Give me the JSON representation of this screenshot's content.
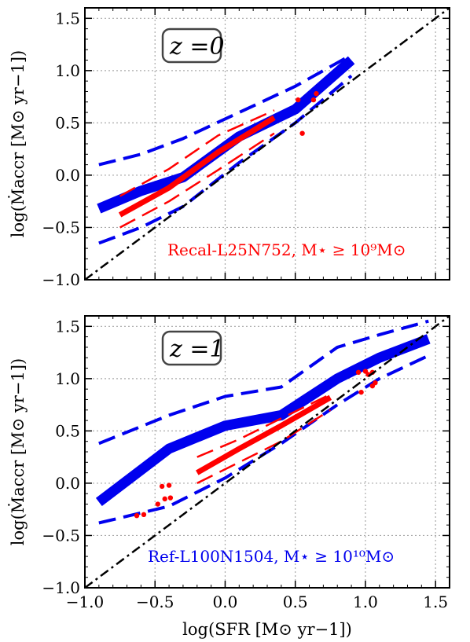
{
  "chart_data": [
    {
      "type": "line",
      "panel": "top",
      "label": "z =0",
      "annotation": "Recal-L25N752, M⋆ ≥ 10⁹M⊙",
      "annotation_color": "#ff0000",
      "xlim": [
        -1.0,
        1.6
      ],
      "ylim": [
        -1.0,
        1.6
      ],
      "xticks": [
        "−1.0",
        "−0.5",
        "0.0",
        "0.5",
        "1.0",
        "1.5"
      ],
      "yticks": [
        "−1.0",
        "−0.5",
        "0.0",
        "0.5",
        "1.0",
        "1.5"
      ],
      "ylabel": "log(Ṁaccr [M⊙ yr−1])",
      "grid": true,
      "series": [
        {
          "color": "#0000ee",
          "style": "thick",
          "x": [
            -0.9,
            -0.6,
            -0.3,
            0.1,
            0.5,
            0.9
          ],
          "y": [
            -0.32,
            -0.15,
            -0.02,
            0.37,
            0.63,
            1.1
          ]
        },
        {
          "color": "#0000ee",
          "style": "dashed",
          "x": [
            -0.9,
            -0.6,
            -0.3,
            0.1,
            0.5,
            0.9
          ],
          "y": [
            0.1,
            0.2,
            0.35,
            0.6,
            0.85,
            1.15
          ]
        },
        {
          "color": "#0000ee",
          "style": "dashed",
          "x": [
            -0.9,
            -0.6,
            -0.3,
            0.1,
            0.5,
            0.9
          ],
          "y": [
            -0.65,
            -0.5,
            -0.3,
            0.12,
            0.5,
            0.95
          ]
        },
        {
          "color": "#ff0000",
          "style": "thick",
          "x": [
            -0.75,
            -0.4,
            -0.05,
            0.35
          ],
          "y": [
            -0.38,
            -0.12,
            0.22,
            0.55
          ]
        },
        {
          "color": "#ff0000",
          "style": "dashed",
          "x": [
            -0.75,
            -0.4,
            -0.05,
            0.35
          ],
          "y": [
            -0.2,
            0.06,
            0.38,
            0.62
          ]
        },
        {
          "color": "#ff0000",
          "style": "dashed",
          "x": [
            -0.75,
            -0.4,
            -0.05,
            0.35
          ],
          "y": [
            -0.5,
            -0.25,
            0.05,
            0.4
          ]
        },
        {
          "color": "#ff0000",
          "style": "points",
          "x": [
            0.52,
            0.55,
            0.63,
            0.65
          ],
          "y": [
            0.72,
            0.4,
            0.72,
            0.78
          ]
        },
        {
          "color": "#000000",
          "style": "dashdot",
          "x": [
            -1.0,
            1.6
          ],
          "y": [
            -1.0,
            1.6
          ]
        }
      ]
    },
    {
      "type": "line",
      "panel": "bottom",
      "label": "z =1",
      "annotation": "Ref-L100N1504, M⋆ ≥ 10¹⁰M⊙",
      "annotation_color": "#0000ee",
      "xlim": [
        -1.0,
        1.6
      ],
      "ylim": [
        -1.0,
        1.6
      ],
      "xticks": [
        "−1.0",
        "−0.5",
        "0.0",
        "0.5",
        "1.0",
        "1.5"
      ],
      "yticks": [
        "−1.0",
        "−0.5",
        "0.0",
        "0.5",
        "1.0",
        "1.5"
      ],
      "xlabel": "log(SFR [M⊙ yr−1])",
      "ylabel": "log(Ṁaccr [M⊙ yr−1])",
      "grid": true,
      "series": [
        {
          "color": "#0000ee",
          "style": "thick",
          "x": [
            -0.9,
            -0.4,
            0.0,
            0.4,
            0.8,
            1.1,
            1.45
          ],
          "y": [
            -0.18,
            0.33,
            0.55,
            0.65,
            1.0,
            1.2,
            1.38
          ]
        },
        {
          "color": "#0000ee",
          "style": "dashed",
          "x": [
            -0.9,
            -0.4,
            0.0,
            0.4,
            0.8,
            1.1,
            1.45
          ],
          "y": [
            0.38,
            0.65,
            0.83,
            0.92,
            1.3,
            1.42,
            1.55
          ]
        },
        {
          "color": "#0000ee",
          "style": "dashed",
          "x": [
            -0.9,
            -0.4,
            0.0,
            0.4,
            0.8,
            1.1,
            1.45
          ],
          "y": [
            -0.38,
            -0.22,
            0.05,
            0.38,
            0.75,
            1.0,
            1.22
          ]
        },
        {
          "color": "#ff0000",
          "style": "thick",
          "x": [
            -0.2,
            0.1,
            0.4,
            0.75
          ],
          "y": [
            0.1,
            0.33,
            0.55,
            0.82
          ]
        },
        {
          "color": "#ff0000",
          "style": "dashed",
          "x": [
            -0.2,
            0.1,
            0.4,
            0.75
          ],
          "y": [
            0.25,
            0.42,
            0.62,
            0.85
          ]
        },
        {
          "color": "#ff0000",
          "style": "dashed",
          "x": [
            -0.2,
            0.1,
            0.4,
            0.75
          ],
          "y": [
            0.0,
            0.2,
            0.4,
            0.7
          ]
        },
        {
          "color": "#ff0000",
          "style": "points",
          "x": [
            -0.63,
            -0.58,
            -0.48,
            -0.45,
            -0.4,
            -0.43,
            -0.39,
            0.95,
            1.0,
            1.02,
            1.05,
            0.97,
            1.07,
            1.05
          ],
          "y": [
            -0.31,
            -0.3,
            -0.2,
            -0.03,
            -0.02,
            -0.15,
            -0.14,
            1.06,
            1.07,
            1.04,
            1.06,
            0.87,
            0.96,
            0.93
          ]
        },
        {
          "color": "#000000",
          "style": "dashdot",
          "x": [
            -1.0,
            1.6
          ],
          "y": [
            -1.0,
            1.6
          ]
        }
      ]
    }
  ]
}
